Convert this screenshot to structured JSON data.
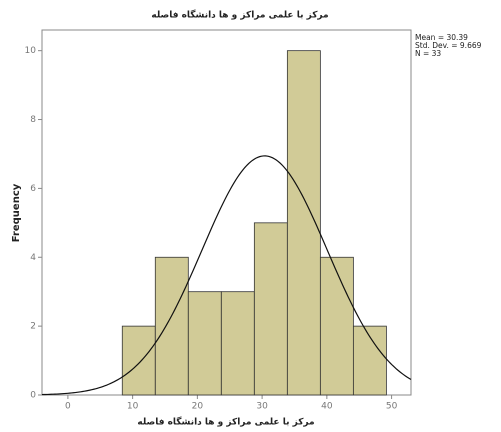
{
  "chart_data": {
    "type": "histogram",
    "title": "مرکز با علمی مراکز و ها دانشگاه فاصله",
    "x_label": "مرکز با علمی مراکز و ها دانشگاه فاصله",
    "y_label": "Frequency",
    "bins": [
      8.4,
      13.5,
      18.6,
      23.7,
      28.8,
      33.9,
      39.0,
      44.1,
      49.2
    ],
    "values": [
      2,
      4,
      3,
      3,
      5,
      10,
      4,
      2
    ],
    "color": "#c9c285",
    "curve_color": "#111111",
    "stats": [
      {
        "value": 30.39,
        "label": "Mean = 30.39"
      },
      {
        "value": 9.669,
        "label": "Std. Dev. = 9.669"
      },
      {
        "value": 33,
        "label": "N = 33"
      }
    ],
    "xlim": [
      -4,
      53
    ],
    "ylim": [
      0,
      10.6
    ],
    "xticks": [
      0,
      10,
      20,
      30,
      40,
      50
    ],
    "yticks": [
      0,
      2,
      4,
      6,
      8,
      10
    ]
  }
}
